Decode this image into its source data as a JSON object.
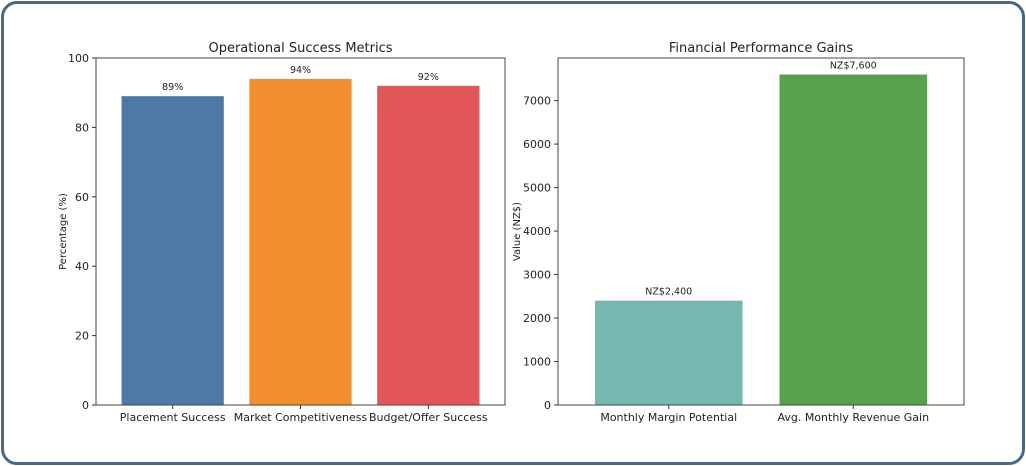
{
  "colors": {
    "frame": "#46688a"
  },
  "chart_data": [
    {
      "type": "bar",
      "title": "Operational Success Metrics",
      "xlabel": "",
      "ylabel": "Percentage (%)",
      "categories": [
        "Placement Success",
        "Market Competitiveness",
        "Budget/Offer Success"
      ],
      "values": [
        89,
        94,
        92
      ],
      "data_labels": [
        "89%",
        "94%",
        "92%"
      ],
      "colors": [
        "#4e79a7",
        "#f28e2b",
        "#e15759"
      ],
      "ylim": [
        0,
        100
      ],
      "yticks": [
        0,
        20,
        40,
        60,
        80,
        100
      ],
      "grid": false
    },
    {
      "type": "bar",
      "title": "Financial Performance Gains",
      "xlabel": "",
      "ylabel": "Value (NZ$)",
      "categories": [
        "Monthly Margin Potential",
        "Avg. Monthly Revenue Gain"
      ],
      "values": [
        2400,
        7600
      ],
      "data_labels": [
        "NZ$2,400",
        "NZ$7,600"
      ],
      "colors": [
        "#76b7b2",
        "#59a14f"
      ],
      "ylim": [
        0,
        7980
      ],
      "yticks": [
        0,
        1000,
        2000,
        3000,
        4000,
        5000,
        6000,
        7000
      ],
      "grid": false
    }
  ]
}
